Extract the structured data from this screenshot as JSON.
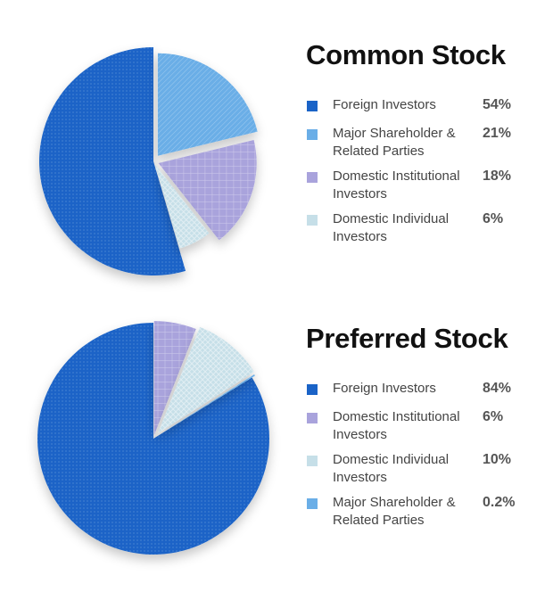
{
  "colors": {
    "foreign": "#1a63c7",
    "major": "#6aaee7",
    "institutional": "#a9a3dc",
    "individual": "#c6dfe8"
  },
  "chart_data": [
    {
      "type": "pie",
      "title": "Common Stock",
      "slices": [
        {
          "name": "Foreign Investors",
          "value": 54,
          "label": "54%",
          "color_key": "foreign"
        },
        {
          "name": "Major Shareholder & Related Parties",
          "value": 21,
          "label": "21%",
          "color_key": "major"
        },
        {
          "name": "Domestic Institutional Investors",
          "value": 18,
          "label": "18%",
          "color_key": "institutional"
        },
        {
          "name": "Domestic Individual Investors",
          "value": 6,
          "label": "6%",
          "color_key": "individual"
        }
      ]
    },
    {
      "type": "pie",
      "title": "Preferred Stock",
      "slices": [
        {
          "name": "Foreign Investors",
          "value": 84,
          "label": "84%",
          "color_key": "foreign"
        },
        {
          "name": "Domestic Institutional Investors",
          "value": 6,
          "label": "6%",
          "color_key": "institutional"
        },
        {
          "name": "Domestic Individual Investors",
          "value": 10,
          "label": "10%",
          "color_key": "individual"
        },
        {
          "name": "Major Shareholder & Related Parties",
          "value": 0.2,
          "label": "0.2%",
          "color_key": "major"
        }
      ]
    }
  ]
}
